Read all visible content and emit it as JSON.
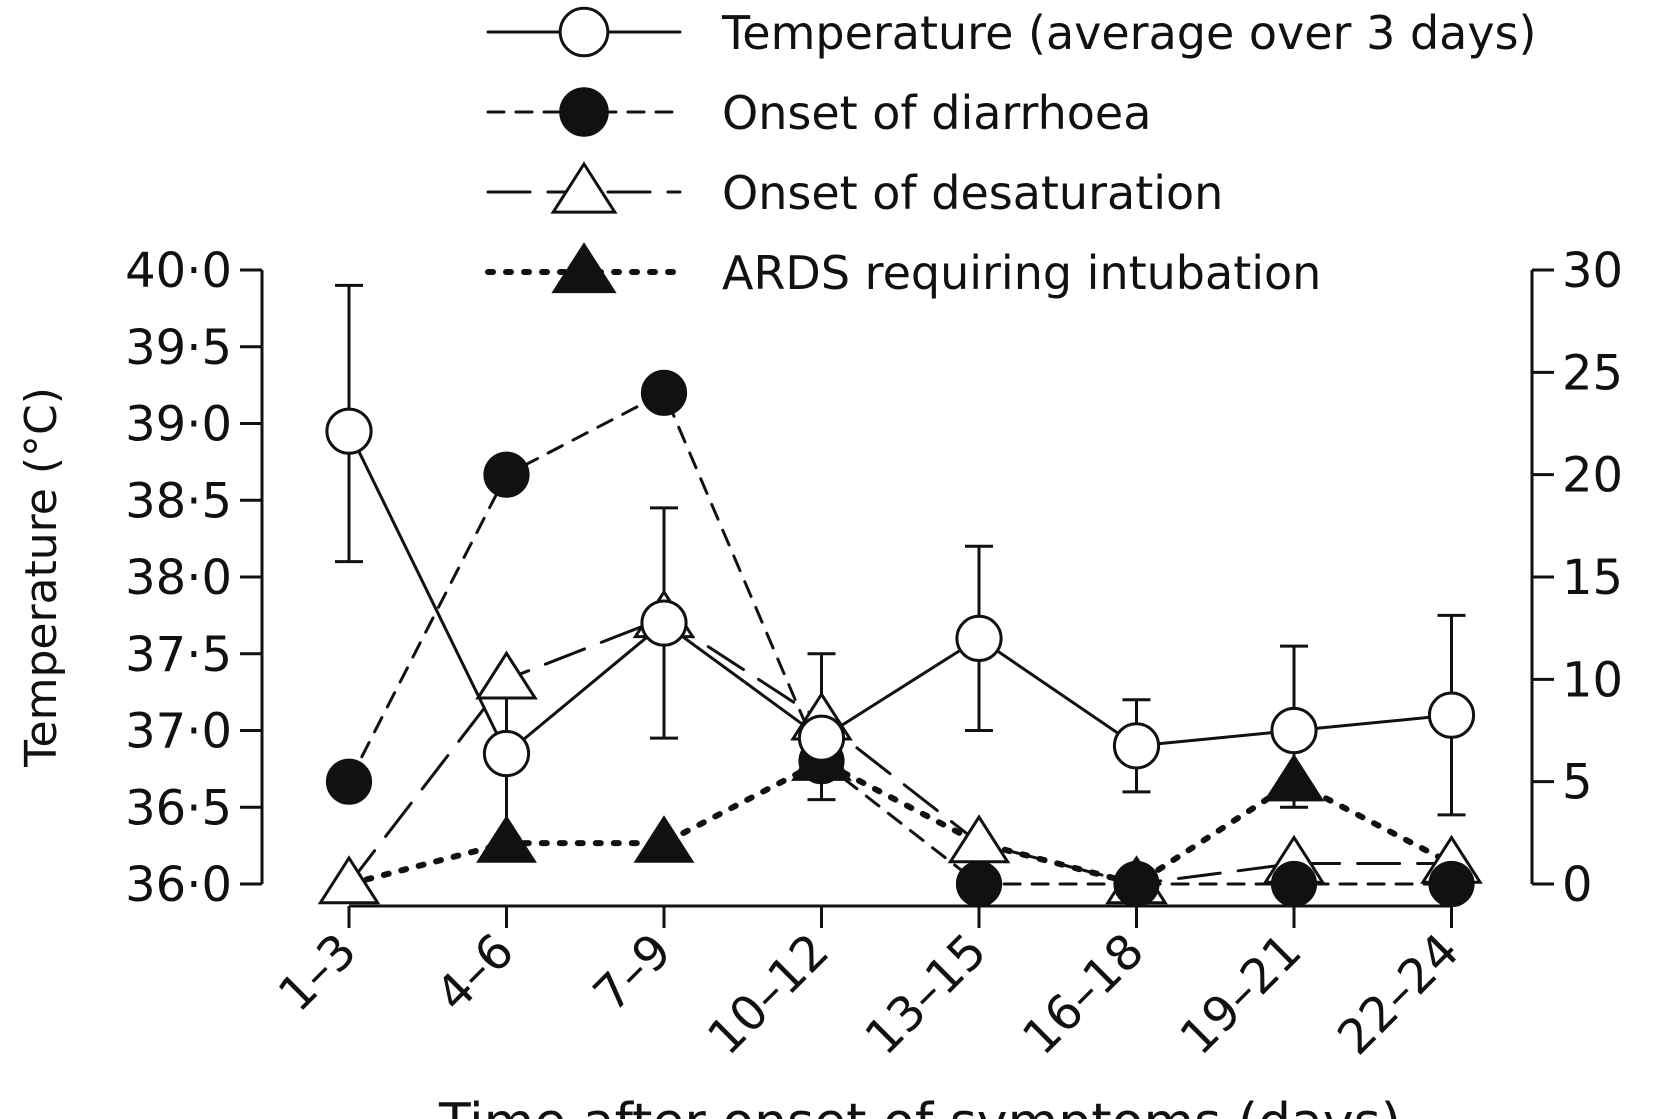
{
  "chart_data": {
    "type": "line",
    "title": "",
    "xlabel": "Time after onset of symptoms (days)",
    "ylabel_left": "Temperature (°C)",
    "ylabel_right": "",
    "categories": [
      "1–3",
      "4–6",
      "7–9",
      "10–12",
      "13–15",
      "16–18",
      "19–21",
      "22–24"
    ],
    "y_left": {
      "min": 36.0,
      "max": 40.0,
      "ticks": [
        36.0,
        36.5,
        37.0,
        37.5,
        38.0,
        38.5,
        39.0,
        39.5,
        40.0
      ],
      "tick_labels": [
        "36·0",
        "36·5",
        "37·0",
        "37·5",
        "38·0",
        "38·5",
        "39·0",
        "39·5",
        "40·0"
      ]
    },
    "y_right": {
      "min": 0,
      "max": 30,
      "ticks": [
        0,
        5,
        10,
        15,
        20,
        25,
        30
      ],
      "tick_labels": [
        "0",
        "5",
        "10",
        "15",
        "20",
        "25",
        "30"
      ]
    },
    "grid": false,
    "legend_position": "top",
    "series": [
      {
        "name": "Temperature (average over 3 days)",
        "axis": "left",
        "marker": "open-circle",
        "line": "solid",
        "color": "#111111",
        "values": [
          38.95,
          36.85,
          37.7,
          36.95,
          37.6,
          36.9,
          37.0,
          37.1
        ],
        "err_low": [
          38.1,
          36.3,
          36.95,
          36.55,
          37.0,
          36.6,
          36.5,
          36.45
        ],
        "err_high": [
          39.9,
          37.3,
          38.45,
          37.5,
          38.2,
          37.2,
          37.55,
          37.75
        ]
      },
      {
        "name": "Onset of diarrhoea",
        "axis": "right",
        "marker": "filled-circle",
        "line": "dashed",
        "color": "#111111",
        "values": [
          5,
          20,
          24,
          6,
          0,
          0,
          0,
          0
        ]
      },
      {
        "name": "Onset of desaturation",
        "axis": "right",
        "marker": "open-triangle",
        "line": "long-dash",
        "color": "#111111",
        "values": [
          0,
          10,
          13,
          8,
          2,
          0,
          1,
          1
        ]
      },
      {
        "name": "ARDS requiring intubation",
        "axis": "right",
        "marker": "filled-triangle",
        "line": "dotted",
        "color": "#111111",
        "values": [
          0,
          2,
          2,
          6,
          2,
          0,
          5,
          1
        ]
      }
    ]
  }
}
